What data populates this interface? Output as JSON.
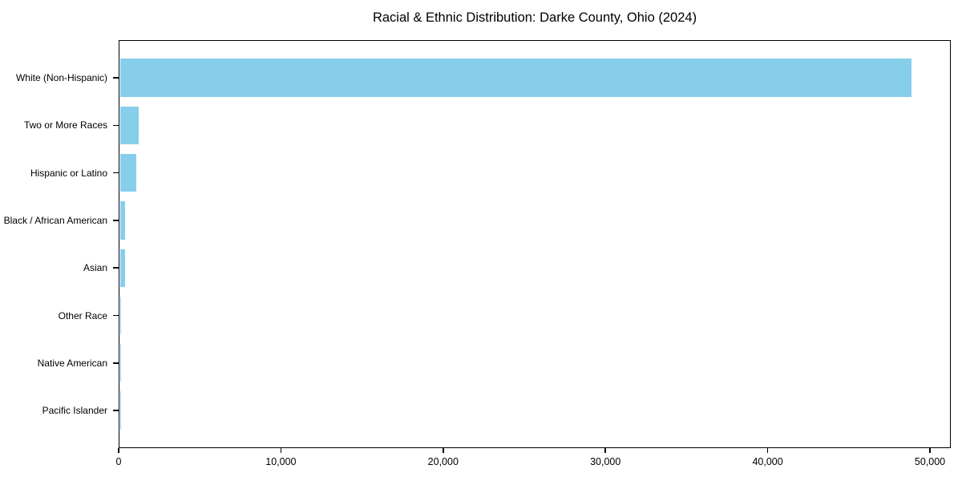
{
  "chart_data": {
    "type": "bar",
    "orientation": "horizontal",
    "title": "Racial & Ethnic Distribution: Darke County, Ohio (2024)",
    "categories": [
      "White (Non-Hispanic)",
      "Two or More Races",
      "Hispanic or Latino",
      "Black / African American",
      "Asian",
      "Other Race",
      "Native American",
      "Pacific Islander"
    ],
    "values": [
      48800,
      1170,
      1000,
      300,
      330,
      60,
      25,
      10
    ],
    "xlabel": "",
    "ylabel": "",
    "xlim": [
      0,
      51280
    ],
    "x_ticks": [
      0,
      10000,
      20000,
      30000,
      40000,
      50000
    ],
    "x_tick_labels": [
      "0",
      "10,000",
      "20,000",
      "30,000",
      "40,000",
      "50,000"
    ],
    "bar_color": "#87CEEB",
    "spine_color": "#000000",
    "background_color": "#ffffff",
    "grid": false,
    "legend": null
  }
}
